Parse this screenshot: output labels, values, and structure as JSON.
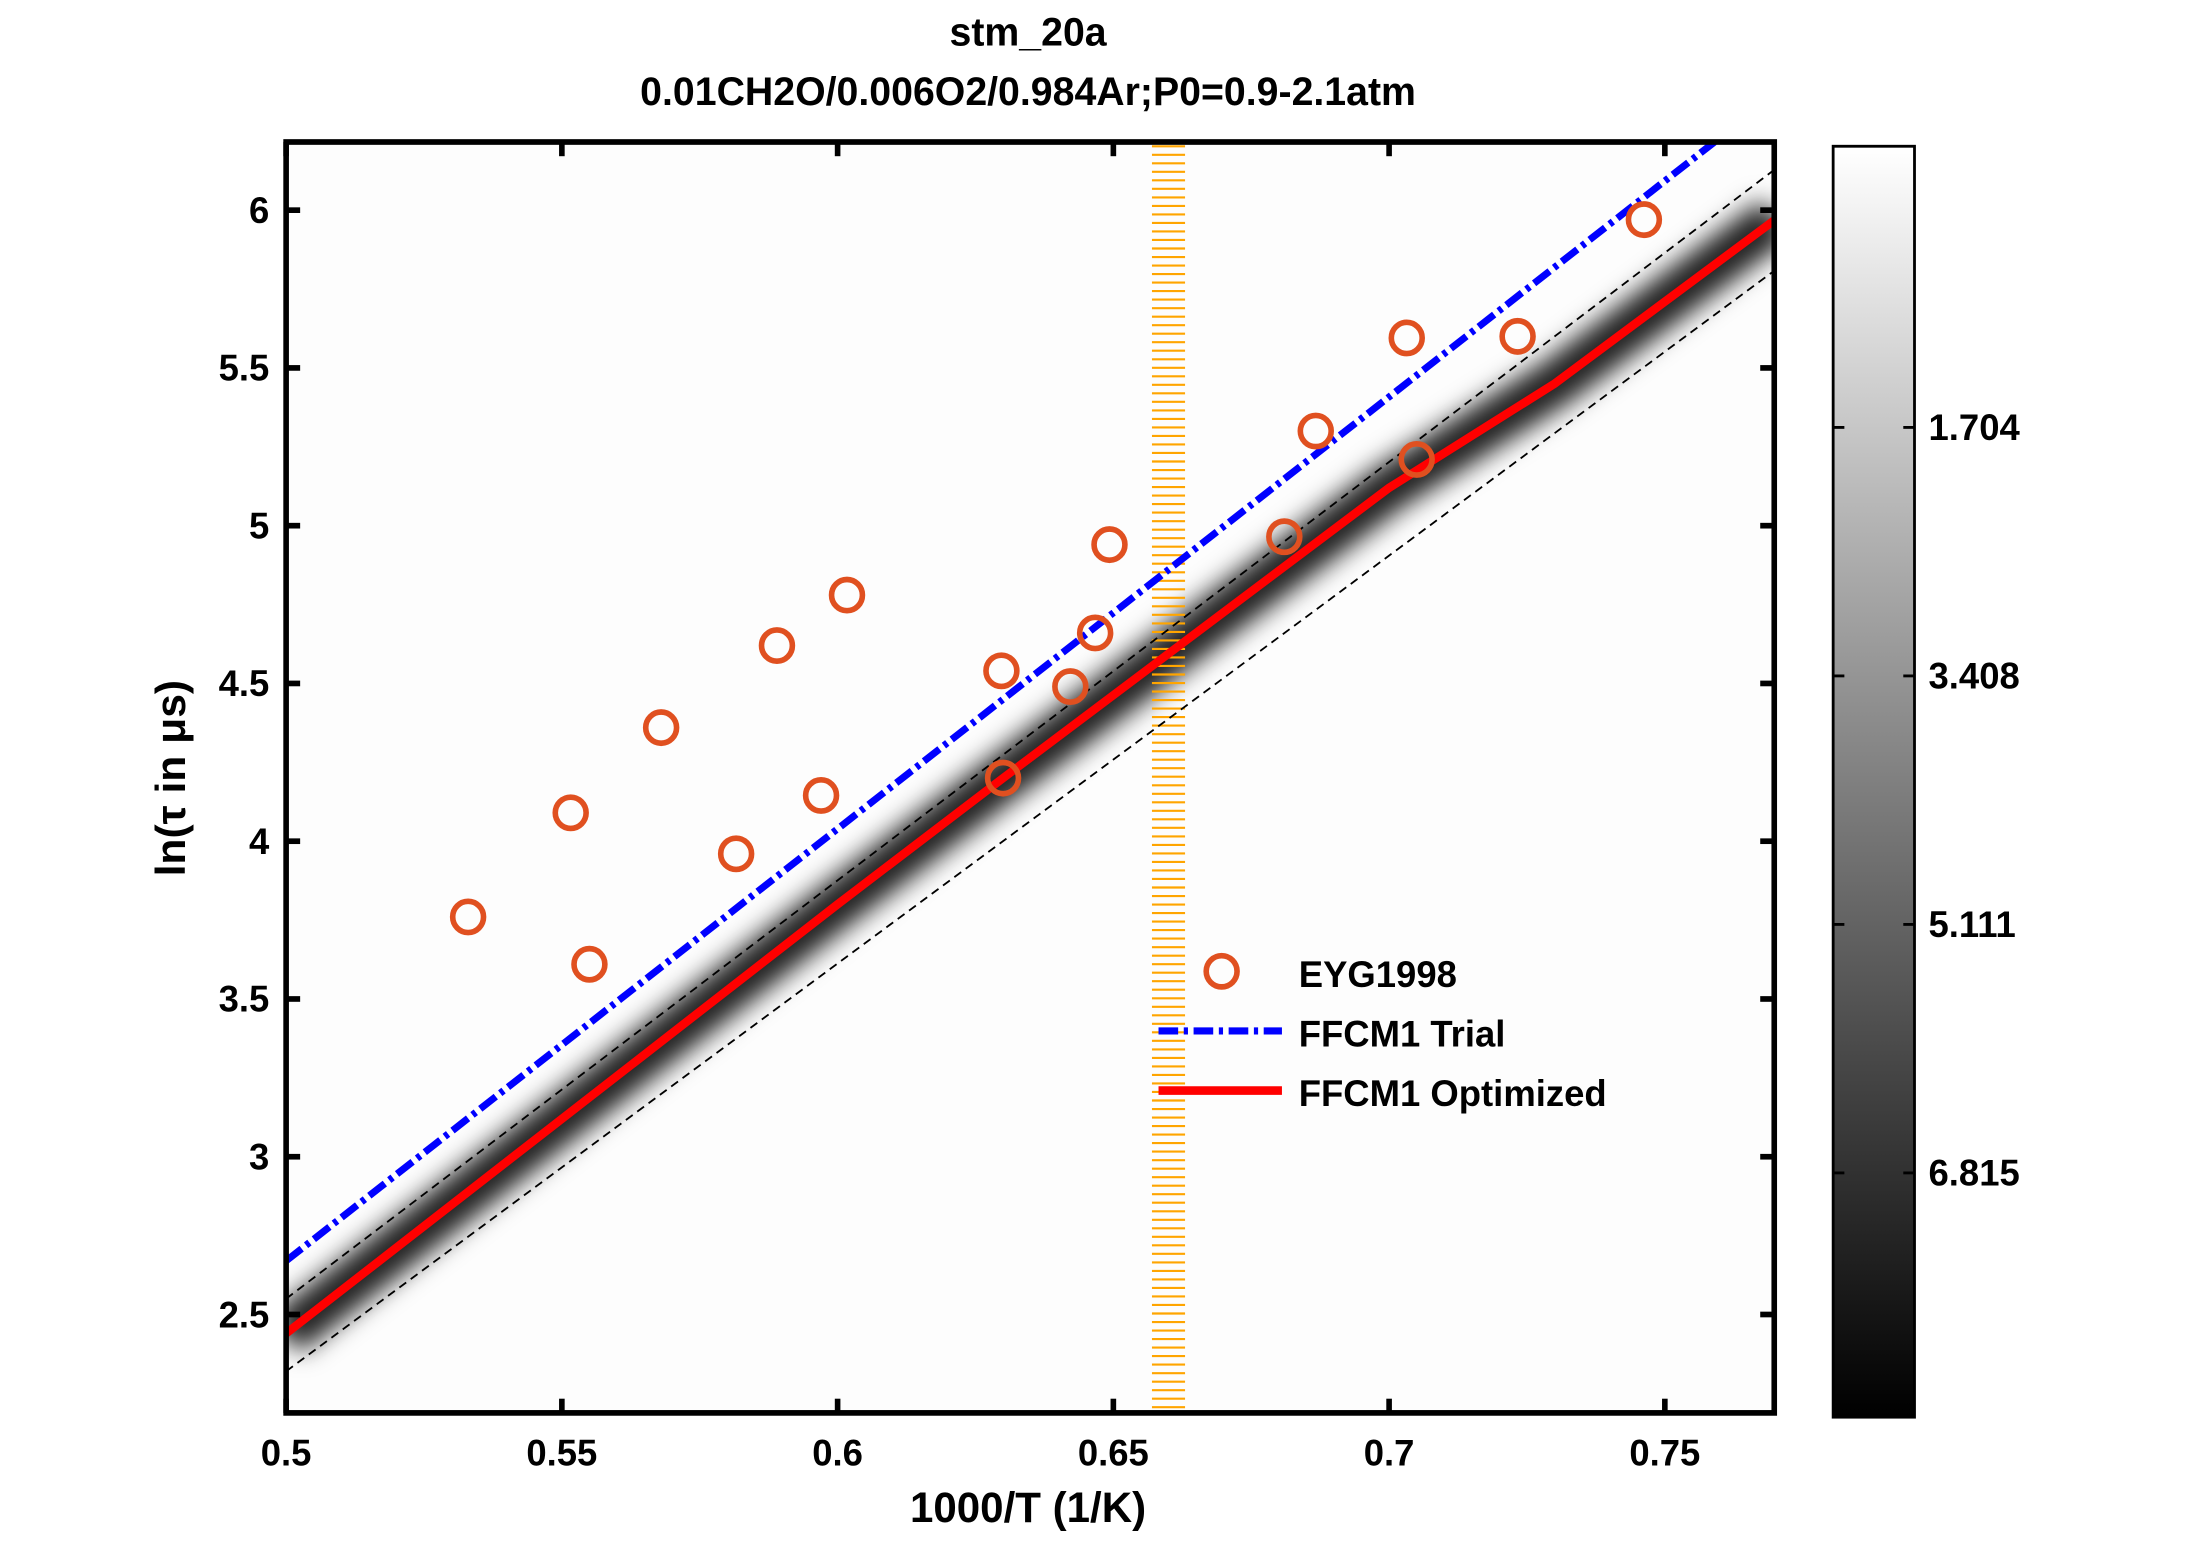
{
  "chart_data": {
    "type": "scatter",
    "title": "stm_20a",
    "subtitle": "0.01CH2O/0.006O2/0.984Ar;P0=0.9-2.1atm",
    "xlabel": "1000/T (1/K)",
    "ylabel": "ln(τ in μs)",
    "xlim": [
      0.5,
      0.77
    ],
    "ylim": [
      2.2,
      6.2
    ],
    "xticks": [
      "0.5",
      "0.55",
      "0.6",
      "0.65",
      "0.7",
      "0.75"
    ],
    "yticks": [
      "2.5",
      "3",
      "3.5",
      "4",
      "4.5",
      "5",
      "5.5",
      "6"
    ],
    "grid": false,
    "legend_position": "center-right",
    "series": [
      {
        "name": "EYG1998",
        "type": "scatter",
        "marker": "circle",
        "color": "#e05020",
        "x": [
          0.533,
          0.555,
          0.5516,
          0.568,
          0.5816,
          0.589,
          0.597,
          0.6017,
          0.6297,
          0.63,
          0.6422,
          0.6467,
          0.6493,
          0.681,
          0.6867,
          0.7032,
          0.705,
          0.7233,
          0.7462
        ],
        "y": [
          3.76,
          3.61,
          4.09,
          4.36,
          3.96,
          4.62,
          4.145,
          4.78,
          4.54,
          4.2,
          4.49,
          4.66,
          4.94,
          4.965,
          5.3,
          5.595,
          5.21,
          5.6,
          5.97
        ]
      },
      {
        "name": "FFCM1 Trial",
        "type": "line",
        "style": "dash-dot",
        "color": "#0000ff",
        "x": [
          0.5,
          0.759
        ],
        "y": [
          2.67,
          6.216
        ]
      },
      {
        "name": "FFCM1 Optimized",
        "type": "line",
        "style": "solid",
        "color": "#ff0000",
        "x": [
          0.5,
          0.6,
          0.63,
          0.7,
          0.73,
          0.77
        ],
        "y": [
          2.44,
          3.8,
          4.2,
          5.12,
          5.45,
          5.97
        ]
      }
    ],
    "uncertainty_bounds": {
      "color": "#000000",
      "style": "dashed",
      "upper": {
        "x": [
          0.5,
          0.77
        ],
        "y": [
          2.55,
          6.13
        ]
      },
      "lower": {
        "x": [
          0.5,
          0.77
        ],
        "y": [
          2.32,
          5.81
        ]
      }
    },
    "highlight_band": {
      "x": [
        0.657,
        0.663
      ],
      "color": "#ffa500"
    },
    "colorbar": {
      "colormap": "gray",
      "direction": "white-top-black-bottom",
      "ticks": [
        "1.704",
        "3.408",
        "5.111",
        "6.815"
      ]
    }
  }
}
